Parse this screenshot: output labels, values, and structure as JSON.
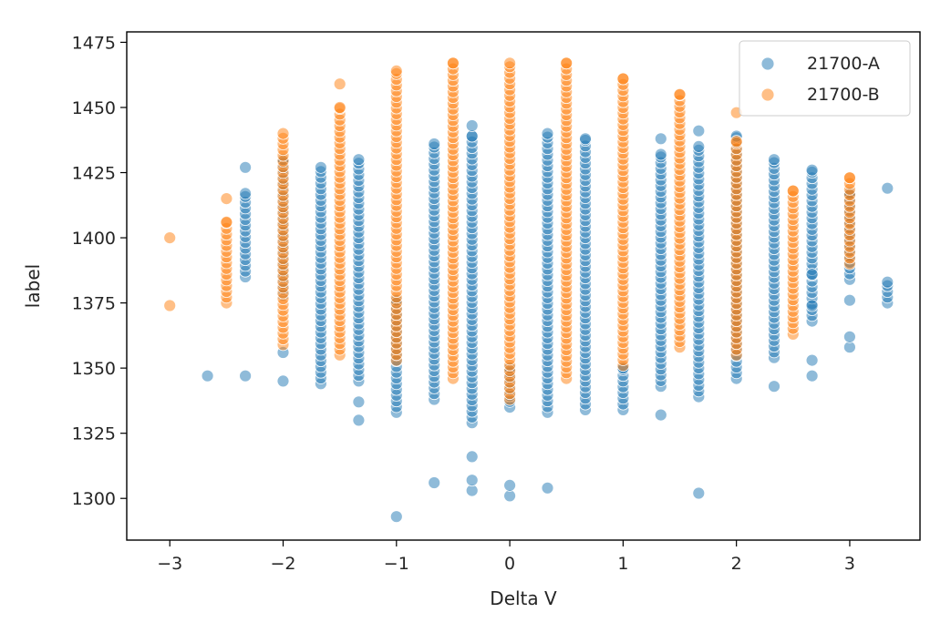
{
  "chart_data": {
    "type": "scatter",
    "title": "",
    "xlabel": "Delta V",
    "ylabel": "label",
    "xlim": [
      -3.38,
      3.62
    ],
    "ylim": [
      1284,
      1479
    ],
    "x_ticks": [
      -3,
      -2,
      -1,
      0,
      1,
      2,
      3
    ],
    "x_tick_labels": [
      "−3",
      "−2",
      "−1",
      "0",
      "1",
      "2",
      "3"
    ],
    "y_ticks": [
      1300,
      1325,
      1350,
      1375,
      1400,
      1425,
      1450,
      1475
    ],
    "y_tick_labels": [
      "1300",
      "1325",
      "1350",
      "1375",
      "1400",
      "1425",
      "1450",
      "1475"
    ],
    "grid": false,
    "legend_position": "top-right",
    "series": [
      {
        "name": "21700-A",
        "color": "#1f77b4",
        "point_alpha": 0.5,
        "columns": [
          {
            "x": -2.667,
            "y_min": 1347,
            "y_max": 1347,
            "extra": []
          },
          {
            "x": -2.333,
            "y_min": 1385,
            "y_max": 1417,
            "extra": [
              1347,
              1427
            ]
          },
          {
            "x": -2.0,
            "y_min": 1378,
            "y_max": 1430,
            "extra": [
              1345,
              1356
            ]
          },
          {
            "x": -1.667,
            "y_min": 1344,
            "y_max": 1427,
            "extra": []
          },
          {
            "x": -1.333,
            "y_min": 1345,
            "y_max": 1430,
            "extra": [
              1330,
              1337
            ]
          },
          {
            "x": -1.0,
            "y_min": 1333,
            "y_max": 1376,
            "extra": [
              1293
            ]
          },
          {
            "x": -0.667,
            "y_min": 1338,
            "y_max": 1436,
            "extra": [
              1306
            ]
          },
          {
            "x": -0.333,
            "y_min": 1329,
            "y_max": 1439,
            "extra": [
              1303,
              1307,
              1316,
              1443
            ]
          },
          {
            "x": 0.0,
            "y_min": 1335,
            "y_max": 1350,
            "extra": [
              1301,
              1305
            ]
          },
          {
            "x": 0.333,
            "y_min": 1333,
            "y_max": 1440,
            "extra": [
              1304
            ]
          },
          {
            "x": 0.667,
            "y_min": 1334,
            "y_max": 1438,
            "extra": []
          },
          {
            "x": 1.0,
            "y_min": 1334,
            "y_max": 1350,
            "extra": []
          },
          {
            "x": 1.333,
            "y_min": 1343,
            "y_max": 1432,
            "extra": [
              1332,
              1438
            ]
          },
          {
            "x": 1.667,
            "y_min": 1339,
            "y_max": 1435,
            "extra": [
              1302,
              1441
            ]
          },
          {
            "x": 2.0,
            "y_min": 1346,
            "y_max": 1439,
            "extra": []
          },
          {
            "x": 2.333,
            "y_min": 1354,
            "y_max": 1430,
            "extra": [
              1343
            ]
          },
          {
            "x": 2.667,
            "y_min": 1368,
            "y_max": 1426,
            "extra": [
              1347,
              1353,
              1374,
              1386
            ]
          },
          {
            "x": 3.0,
            "y_min": 1384,
            "y_max": 1417,
            "extra": [
              1358,
              1362,
              1376
            ]
          },
          {
            "x": 3.333,
            "y_min": 1375,
            "y_max": 1383,
            "extra": [
              1419
            ]
          }
        ]
      },
      {
        "name": "21700-B",
        "color": "#ff7f0e",
        "point_alpha": 0.5,
        "columns": [
          {
            "x": -3.0,
            "y_min": 1400,
            "y_max": 1400,
            "extra": [
              1374
            ]
          },
          {
            "x": -2.5,
            "y_min": 1375,
            "y_max": 1406,
            "extra": [
              1415
            ]
          },
          {
            "x": -2.0,
            "y_min": 1359,
            "y_max": 1440,
            "extra": []
          },
          {
            "x": -1.5,
            "y_min": 1355,
            "y_max": 1450,
            "extra": [
              1459
            ]
          },
          {
            "x": -1.0,
            "y_min": 1353,
            "y_max": 1464,
            "extra": []
          },
          {
            "x": -0.5,
            "y_min": 1346,
            "y_max": 1467,
            "extra": []
          },
          {
            "x": 0.0,
            "y_min": 1338,
            "y_max": 1467,
            "extra": []
          },
          {
            "x": 0.5,
            "y_min": 1346,
            "y_max": 1467,
            "extra": []
          },
          {
            "x": 1.0,
            "y_min": 1351,
            "y_max": 1461,
            "extra": []
          },
          {
            "x": 1.5,
            "y_min": 1358,
            "y_max": 1455,
            "extra": []
          },
          {
            "x": 2.0,
            "y_min": 1355,
            "y_max": 1437,
            "extra": [
              1448
            ]
          },
          {
            "x": 2.5,
            "y_min": 1363,
            "y_max": 1418,
            "extra": []
          },
          {
            "x": 3.0,
            "y_min": 1390,
            "y_max": 1423,
            "extra": []
          }
        ]
      }
    ]
  }
}
